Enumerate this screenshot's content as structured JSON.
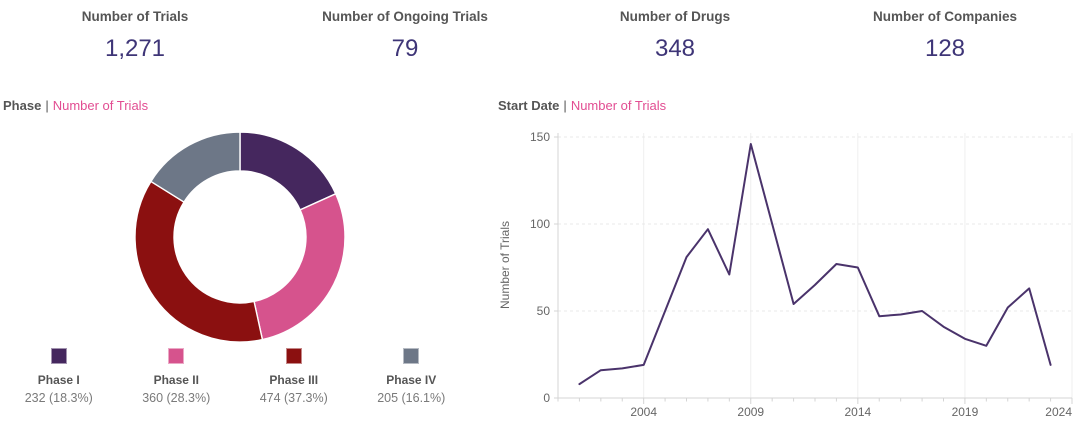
{
  "kpis": [
    {
      "label": "Number of Trials",
      "value": "1,271"
    },
    {
      "label": "Number of Ongoing Trials",
      "value": "79"
    },
    {
      "label": "Number of Drugs",
      "value": "348"
    },
    {
      "label": "Number of Companies",
      "value": "128"
    }
  ],
  "donut_title": {
    "field": "Phase",
    "sep": "|",
    "measure": "Number of Trials"
  },
  "line_title": {
    "field": "Start Date",
    "sep": "|",
    "measure": "Number of Trials"
  },
  "colors": {
    "kpi_label": "#555555",
    "kpi_value": "#3e3577",
    "title_measure_pink": "#e24d92",
    "axis_text": "#666666",
    "axis_line": "#d4d4d4",
    "gridline": "#e9e9e9",
    "trend_line": "#4a336b"
  },
  "chart_data": [
    {
      "type": "pie",
      "subtype": "donut",
      "title": "Phase | Number of Trials",
      "categories": [
        "Phase I",
        "Phase II",
        "Phase III",
        "Phase IV"
      ],
      "values": [
        232,
        360,
        474,
        205
      ],
      "percents": [
        18.3,
        28.3,
        37.3,
        16.1
      ],
      "value_labels": [
        "232 (18.3%)",
        "360 (28.3%)",
        "474 (37.3%)",
        "205 (16.1%)"
      ],
      "colors": [
        "#45275e",
        "#d6538d",
        "#8b1010",
        "#6d7787"
      ],
      "legend_position": "bottom",
      "start_angle_deg": 0,
      "direction": "clockwise"
    },
    {
      "type": "line",
      "title": "Start Date | Number of Trials",
      "xlabel": "",
      "ylabel": "Number of Trials",
      "x": [
        2001,
        2002,
        2003,
        2004,
        2005,
        2006,
        2007,
        2008,
        2009,
        2010,
        2011,
        2012,
        2013,
        2014,
        2015,
        2016,
        2017,
        2018,
        2019,
        2020,
        2021,
        2022,
        2023
      ],
      "y": [
        8,
        16,
        17,
        19,
        50,
        81,
        97,
        71,
        146,
        100,
        54,
        65,
        77,
        75,
        47,
        48,
        50,
        41,
        34,
        30,
        52,
        63,
        19
      ],
      "x_ticks": [
        2004,
        2009,
        2014,
        2019,
        2024
      ],
      "y_ticks": [
        0,
        50,
        100,
        150
      ],
      "xlim": [
        2000,
        2024
      ],
      "ylim": [
        0,
        152
      ],
      "grid": true,
      "line_color": "#4a336b"
    }
  ]
}
